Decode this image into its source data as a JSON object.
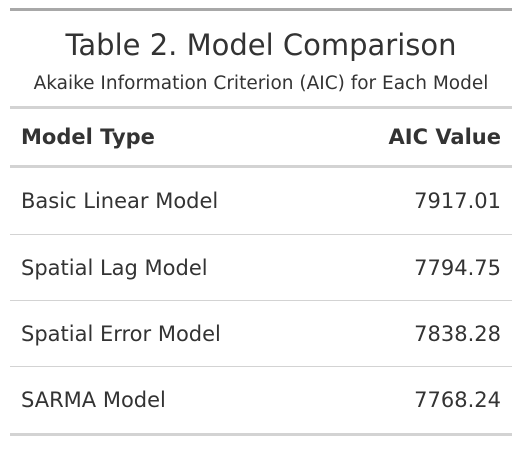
{
  "table": {
    "title": "Table 2. Model Comparison",
    "subtitle": "Akaike Information Criterion (AIC) for Each Model",
    "columns": [
      "Model Type",
      "AIC Value"
    ],
    "rows": [
      {
        "model": "Basic Linear Model",
        "aic": "7917.01"
      },
      {
        "model": "Spatial Lag Model",
        "aic": "7794.75"
      },
      {
        "model": "Spatial Error Model",
        "aic": "7838.28"
      },
      {
        "model": "SARMA Model",
        "aic": "7768.24"
      }
    ]
  }
}
